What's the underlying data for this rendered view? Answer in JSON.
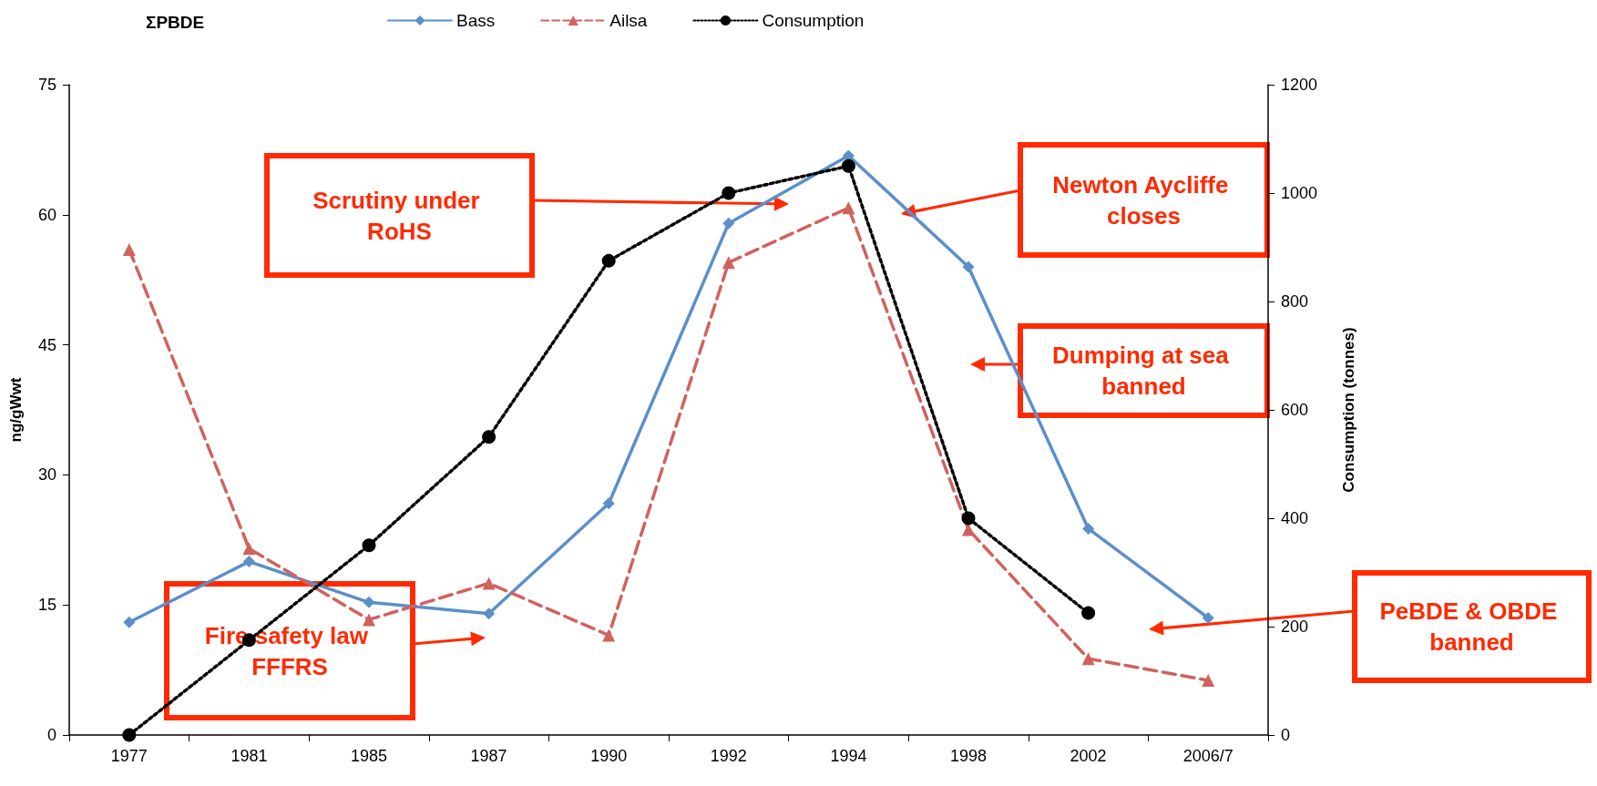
{
  "chart_data": {
    "type": "line",
    "title": "ΣPBDE",
    "ylabel": "ng/gWwt",
    "y2label": "Consumption (tonnes)",
    "categories": [
      "1977",
      "1981",
      "1985",
      "1987",
      "1990",
      "1992",
      "1994",
      "1998",
      "2002",
      "2006/7"
    ],
    "series": [
      {
        "name": "Bass",
        "color": "#5b8fc9",
        "marker": "diamond",
        "line_style": "solid",
        "values": [
          13,
          20,
          15.3,
          14,
          26.7,
          59,
          66.8,
          54,
          23.8,
          13.5
        ]
      },
      {
        "name": "Ailsa",
        "color": "#d0625e",
        "marker": "triangle",
        "line_style": "dashed",
        "values": [
          56,
          21.5,
          13.3,
          17.5,
          11.5,
          54.5,
          60.8,
          23.7,
          8.8,
          6.3
        ]
      },
      {
        "name": "Consumption",
        "color": "#000000",
        "marker": "circle",
        "line_style": "dotted",
        "axis": "y2",
        "values": [
          0,
          175,
          350,
          550,
          875,
          1000,
          1050,
          400,
          225,
          null
        ]
      }
    ],
    "ylim": [
      0,
      75
    ],
    "yticks": [
      0,
      15,
      30,
      45,
      60,
      75
    ],
    "y2lim": [
      0,
      1200
    ],
    "y2ticks": [
      0,
      200,
      400,
      600,
      800,
      1000,
      1200
    ],
    "grid": false,
    "legend": "top",
    "annotations": [
      "Scrutiny under RoHS",
      "Newton Aycliffe closes",
      "Dumping at sea banned",
      "PeBDE & OBDE banned",
      "Fire safety law FFFRS"
    ]
  }
}
